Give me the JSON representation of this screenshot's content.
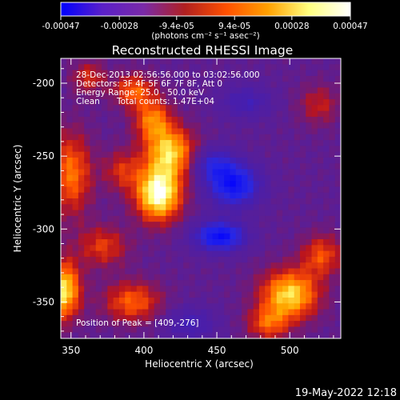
{
  "chart_data": {
    "type": "heatmap",
    "title": "Reconstructed RHESSI Image",
    "xlabel": "Heliocentric X (arcsec)",
    "ylabel": "Heliocentric Y (arcsec)",
    "xlim": [
      343,
      535
    ],
    "ylim": [
      -375,
      -183
    ],
    "x_ticks": [
      350,
      400,
      450,
      500
    ],
    "y_ticks": [
      -200,
      -250,
      -300,
      -350
    ],
    "colorbar": {
      "min": -0.00047,
      "max": 0.00047,
      "tick_values": [
        -0.00047,
        -0.00028,
        -9.4e-05,
        9.4e-05,
        0.00028,
        0.00047
      ],
      "tick_labels": [
        "-0.00047",
        "-0.00028",
        "-9.4e-05",
        "9.4e-05",
        "0.00028",
        "0.00047"
      ],
      "units_label": "(photons cm⁻² s⁻¹ asec⁻²)",
      "colors": [
        "#0000ff",
        "#5a20c8",
        "#7a2aa8",
        "#b02020",
        "#ff5000",
        "#ffa000",
        "#ffff80",
        "#ffffff"
      ]
    },
    "annotations": [
      "28-Dec-2013 02:56:56.000 to 03:02:56.000",
      "Detectors: 3F 4F 5F 6F 7F 8F, Att 0",
      "Energy Range: 25.0 - 50.0 keV",
      "Clean",
      "Total counts: 1.47E+04"
    ],
    "peak_label": "Position of Peak = [409,-276]",
    "peak": [
      409,
      -276
    ],
    "sources": [
      {
        "x": 410,
        "y": -276,
        "sx": 11,
        "sy": 13,
        "amp": 1.0
      },
      {
        "x": 418,
        "y": -247,
        "sx": 12,
        "sy": 12,
        "amp": 0.75
      },
      {
        "x": 406,
        "y": -225,
        "sx": 9,
        "sy": 10,
        "amp": 0.55
      },
      {
        "x": 393,
        "y": -205,
        "sx": 10,
        "sy": 8,
        "amp": 0.5
      },
      {
        "x": 385,
        "y": -260,
        "sx": 9,
        "sy": 10,
        "amp": 0.35
      },
      {
        "x": 350,
        "y": -262,
        "sx": 10,
        "sy": 20,
        "amp": 0.55
      },
      {
        "x": 345,
        "y": -342,
        "sx": 8,
        "sy": 14,
        "amp": 0.85
      },
      {
        "x": 372,
        "y": -312,
        "sx": 12,
        "sy": 10,
        "amp": 0.4
      },
      {
        "x": 392,
        "y": -350,
        "sx": 14,
        "sy": 10,
        "amp": 0.5
      },
      {
        "x": 500,
        "y": -345,
        "sx": 14,
        "sy": 12,
        "amp": 0.8
      },
      {
        "x": 522,
        "y": -318,
        "sx": 10,
        "sy": 10,
        "amp": 0.45
      },
      {
        "x": 485,
        "y": -365,
        "sx": 10,
        "sy": 8,
        "amp": 0.45
      },
      {
        "x": 520,
        "y": -215,
        "sx": 10,
        "sy": 10,
        "amp": 0.3
      },
      {
        "x": 362,
        "y": -196,
        "sx": 8,
        "sy": 8,
        "amp": 0.35
      },
      {
        "x": 462,
        "y": -270,
        "sx": 12,
        "sy": 10,
        "amp": -0.85
      },
      {
        "x": 448,
        "y": -256,
        "sx": 10,
        "sy": 8,
        "amp": -0.5
      },
      {
        "x": 452,
        "y": -305,
        "sx": 12,
        "sy": 7,
        "amp": -0.9
      },
      {
        "x": 470,
        "y": -213,
        "sx": 12,
        "sy": 8,
        "amp": -0.35
      },
      {
        "x": 432,
        "y": -365,
        "sx": 12,
        "sy": 8,
        "amp": -0.35
      }
    ],
    "grid": false
  },
  "timestamp": "19-May-2022 12:18"
}
